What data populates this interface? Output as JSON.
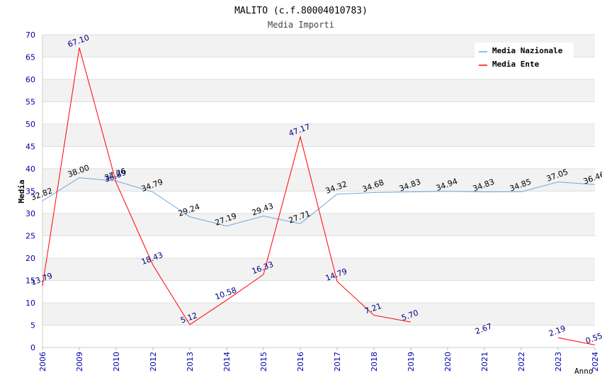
{
  "chart_data": {
    "type": "line",
    "title": "MALITO (c.f.80004010783)",
    "subtitle": "Media Importi",
    "xlabel": "Anno",
    "ylabel": "Media",
    "ylim": [
      0,
      70
    ],
    "ytick_step": 5,
    "yticks": [
      "0",
      "5",
      "10",
      "15",
      "20",
      "25",
      "30",
      "35",
      "40",
      "45",
      "50",
      "55",
      "60",
      "65",
      "70"
    ],
    "categories": [
      "2006",
      "2009",
      "2010",
      "2012",
      "2013",
      "2014",
      "2015",
      "2016",
      "2017",
      "2018",
      "2019",
      "2020",
      "2021",
      "2022",
      "2023",
      "2024"
    ],
    "grid": true,
    "legend_position": "top-right",
    "series": [
      {
        "name": "Media Nazionale",
        "color": "#6fa8dc",
        "values": [
          32.82,
          38.0,
          37.26,
          34.79,
          29.24,
          27.19,
          29.43,
          27.71,
          34.32,
          34.68,
          34.83,
          34.94,
          34.83,
          34.85,
          37.05,
          36.46
        ],
        "labels": [
          "32.82",
          "38.00",
          "37.26",
          "34.79",
          "29.24",
          "27.19",
          "29.43",
          "27.71",
          "34.32",
          "34.68",
          "34.83",
          "34.94",
          "34.83",
          "34.85",
          "37.05",
          "36.46"
        ]
      },
      {
        "name": "Media Ente",
        "color": "#ff0000",
        "values": [
          13.79,
          67.1,
          36.89,
          18.43,
          5.12,
          10.58,
          16.33,
          47.17,
          14.79,
          7.21,
          5.7,
          null,
          2.67,
          null,
          2.19,
          0.55
        ],
        "labels": [
          "13.79",
          "67.10",
          "36.89",
          "18.43",
          "5.12",
          "10.58",
          "16.33",
          "47.17",
          "14.79",
          "7.21",
          "5.70",
          null,
          "2.67",
          null,
          "2.19",
          "0.55"
        ]
      }
    ]
  }
}
